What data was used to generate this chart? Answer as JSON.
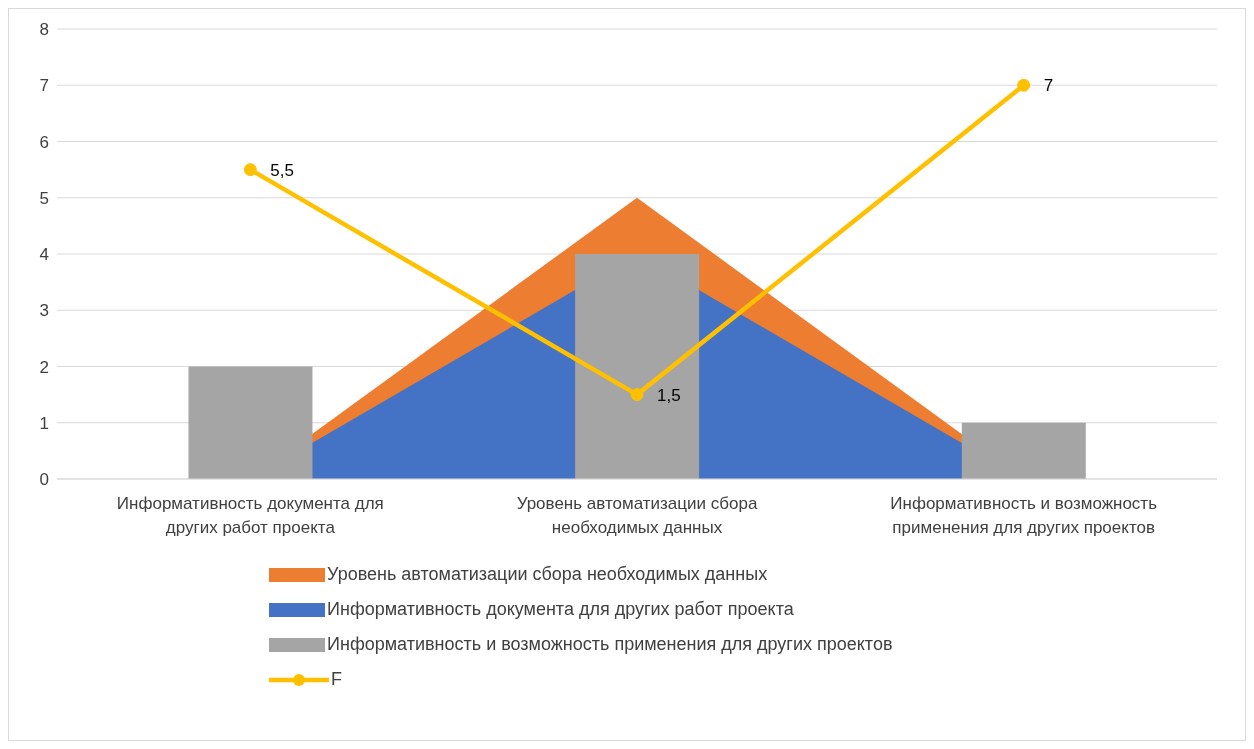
{
  "chart_data": {
    "type": "bar",
    "categories": [
      "Информативность документа для других работ проекта",
      "Уровень автоматизации сбора необходимых данных",
      "Информативность и возможность применения для других проектов"
    ],
    "series": [
      {
        "name": "Уровень автоматизации сбора необходимых данных",
        "type": "area",
        "color": "#ed7d31",
        "values": [
          0,
          5,
          0
        ],
        "marker": "none"
      },
      {
        "name": "Информативность документа для других работ проекта",
        "type": "area",
        "color": "#4472c4",
        "values": [
          0,
          4,
          0
        ],
        "marker": "none"
      },
      {
        "name": "Информативность и возможность применения для других проектов",
        "color": "#a5a5a5",
        "values": [
          2,
          4,
          1
        ]
      },
      {
        "name": "F",
        "type": "line",
        "color": "#ffc000",
        "values": [
          5.5,
          1.5,
          7
        ],
        "value_labels": [
          "5,5",
          "1,5",
          "7"
        ]
      }
    ],
    "ylim": [
      0,
      8
    ],
    "yticks": [
      0,
      1,
      2,
      3,
      4,
      5,
      6,
      7,
      8
    ],
    "grid": "y",
    "legend": "bottom",
    "marker": "circle",
    "line_style": "solid"
  }
}
